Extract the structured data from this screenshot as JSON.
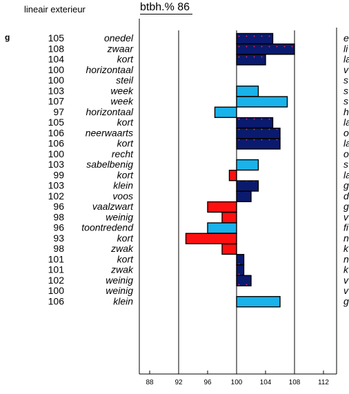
{
  "chart_data": {
    "type": "bar",
    "title": "btbh.% 86",
    "subtitle": "lineair exterieur",
    "left_header_fragment": "g",
    "baseline": 100,
    "xlim": [
      86,
      114
    ],
    "xticks": [
      88,
      92,
      96,
      100,
      104,
      108,
      112
    ],
    "gridlines": [
      92,
      100,
      108
    ],
    "colors": {
      "dark": "#0a1a6e",
      "light": "#19b2ea",
      "red": "#ff1010",
      "dot": "#ff2a6a"
    },
    "rows": [
      {
        "value": 105,
        "label": "onedel",
        "right": "e",
        "style": "dark"
      },
      {
        "value": 108,
        "label": "zwaar",
        "right": "li",
        "style": "dark"
      },
      {
        "value": 104,
        "label": "kort",
        "right": "la",
        "style": "dark"
      },
      {
        "value": 100,
        "label": "horizontaal",
        "right": "v",
        "style": "none"
      },
      {
        "value": 100,
        "label": "steil",
        "right": "s",
        "style": "none"
      },
      {
        "value": 103,
        "label": "week",
        "right": "s",
        "style": "light"
      },
      {
        "value": 107,
        "label": "week",
        "right": "s",
        "style": "light"
      },
      {
        "value": 97,
        "label": "horizontaal",
        "right": "h",
        "style": "light"
      },
      {
        "value": 105,
        "label": "kort",
        "right": "la",
        "style": "dark"
      },
      {
        "value": 106,
        "label": "neerwaarts",
        "right": "o",
        "style": "dark"
      },
      {
        "value": 106,
        "label": "kort",
        "right": "la",
        "style": "dark"
      },
      {
        "value": 100,
        "label": "recht",
        "right": "o",
        "style": "none"
      },
      {
        "value": 103,
        "label": "sabelbenig",
        "right": "s",
        "style": "light"
      },
      {
        "value": 99,
        "label": "kort",
        "right": "la",
        "style": "red"
      },
      {
        "value": 103,
        "label": "klein",
        "right": "g",
        "style": "dark"
      },
      {
        "value": 102,
        "label": "voos",
        "right": "d",
        "style": "dark"
      },
      {
        "value": 96,
        "label": "vaalzwart",
        "right": "g",
        "style": "red"
      },
      {
        "value": 98,
        "label": "weinig",
        "right": "v",
        "style": "red"
      },
      {
        "value": 96,
        "label": "toontredend",
        "right": "fi",
        "style": "light"
      },
      {
        "value": 93,
        "label": "kort",
        "right": "n",
        "style": "red"
      },
      {
        "value": 98,
        "label": "zwak",
        "right": "k",
        "style": "red"
      },
      {
        "value": 101,
        "label": "kort",
        "right": "n",
        "style": "dark"
      },
      {
        "value": 101,
        "label": "zwak",
        "right": "k",
        "style": "dark"
      },
      {
        "value": 102,
        "label": "weinig",
        "right": "v",
        "style": "dark"
      },
      {
        "value": 100,
        "label": "weinig",
        "right": "v",
        "style": "none"
      },
      {
        "value": 106,
        "label": "klein",
        "right": "g",
        "style": "light"
      }
    ]
  }
}
